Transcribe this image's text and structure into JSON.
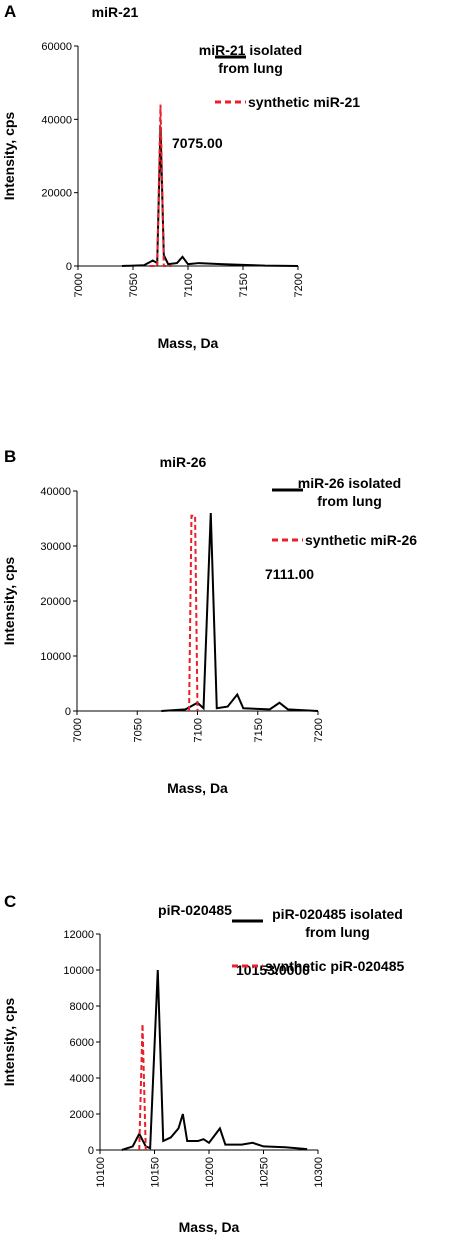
{
  "chart_data": [
    {
      "type": "line",
      "panel": "A",
      "title": "miR-21",
      "xlabel": "Mass, Da",
      "ylabel": "Intensity, cps",
      "annotation": "7075.00",
      "xlim": [
        7000,
        7200
      ],
      "xticks": [
        7000,
        7050,
        7100,
        7150,
        7200
      ],
      "ylim": [
        0,
        60000
      ],
      "yticks": [
        0,
        20000,
        40000,
        60000
      ],
      "series": [
        {
          "name": "miR-21 isolated from lung",
          "color": "#000000",
          "dash": "solid",
          "x": [
            7040,
            7060,
            7068,
            7072,
            7075,
            7078,
            7082,
            7090,
            7095,
            7100,
            7110,
            7130,
            7150,
            7170,
            7200
          ],
          "values": [
            0,
            200,
            1500,
            800,
            38000,
            3000,
            500,
            800,
            2500,
            500,
            800,
            500,
            300,
            100,
            0
          ]
        },
        {
          "name": "synthetic miR-21",
          "color": "#e8202a",
          "dash": "dashed",
          "x": [
            7065,
            7072,
            7075,
            7078,
            7085
          ],
          "values": [
            0,
            0,
            44000,
            0,
            0
          ]
        }
      ]
    },
    {
      "type": "line",
      "panel": "B",
      "title": "miR-26",
      "xlabel": "Mass, Da",
      "ylabel": "Intensity, cps",
      "annotation": "7111.00",
      "xlim": [
        7000,
        7200
      ],
      "xticks": [
        7000,
        7050,
        7100,
        7150,
        7200
      ],
      "ylim": [
        0,
        40000
      ],
      "yticks": [
        0,
        10000,
        20000,
        30000,
        40000
      ],
      "series": [
        {
          "name": "miR-26 isolated from lung",
          "color": "#000000",
          "dash": "solid",
          "x": [
            7070,
            7090,
            7100,
            7105,
            7111,
            7116,
            7125,
            7133,
            7138,
            7160,
            7168,
            7175,
            7200
          ],
          "values": [
            0,
            300,
            1500,
            500,
            36000,
            500,
            800,
            3000,
            500,
            300,
            1500,
            300,
            0
          ]
        },
        {
          "name": "synthetic miR-26",
          "color": "#e8202a",
          "dash": "dashed",
          "x": [
            7093,
            7095,
            7098,
            7100
          ],
          "values": [
            0,
            35500,
            35500,
            0
          ]
        }
      ]
    },
    {
      "type": "line",
      "panel": "C",
      "title": "piR-020485",
      "xlabel": "Mass, Da",
      "ylabel": "Intensity, cps",
      "annotation": "10153.0000",
      "xlim": [
        10100,
        10300
      ],
      "xticks": [
        10100,
        10150,
        10200,
        10250,
        10300
      ],
      "ylim": [
        0,
        12000
      ],
      "yticks": [
        0,
        2000,
        4000,
        6000,
        8000,
        10000,
        12000
      ],
      "series": [
        {
          "name": "piR-020485 isolated from lung",
          "color": "#000000",
          "dash": "solid",
          "x": [
            10120,
            10130,
            10136,
            10142,
            10146,
            10153,
            10158,
            10165,
            10172,
            10176,
            10180,
            10190,
            10195,
            10200,
            10205,
            10210,
            10215,
            10230,
            10240,
            10250,
            10270,
            10290
          ],
          "values": [
            0,
            200,
            900,
            200,
            100,
            10000,
            500,
            700,
            1200,
            2000,
            500,
            500,
            600,
            400,
            800,
            1200,
            300,
            300,
            400,
            200,
            150,
            50
          ]
        },
        {
          "name": "synthetic piR-020485",
          "color": "#e8202a",
          "dash": "dashed",
          "x": [
            10136,
            10139,
            10142
          ],
          "values": [
            0,
            7000,
            0
          ]
        }
      ]
    }
  ]
}
